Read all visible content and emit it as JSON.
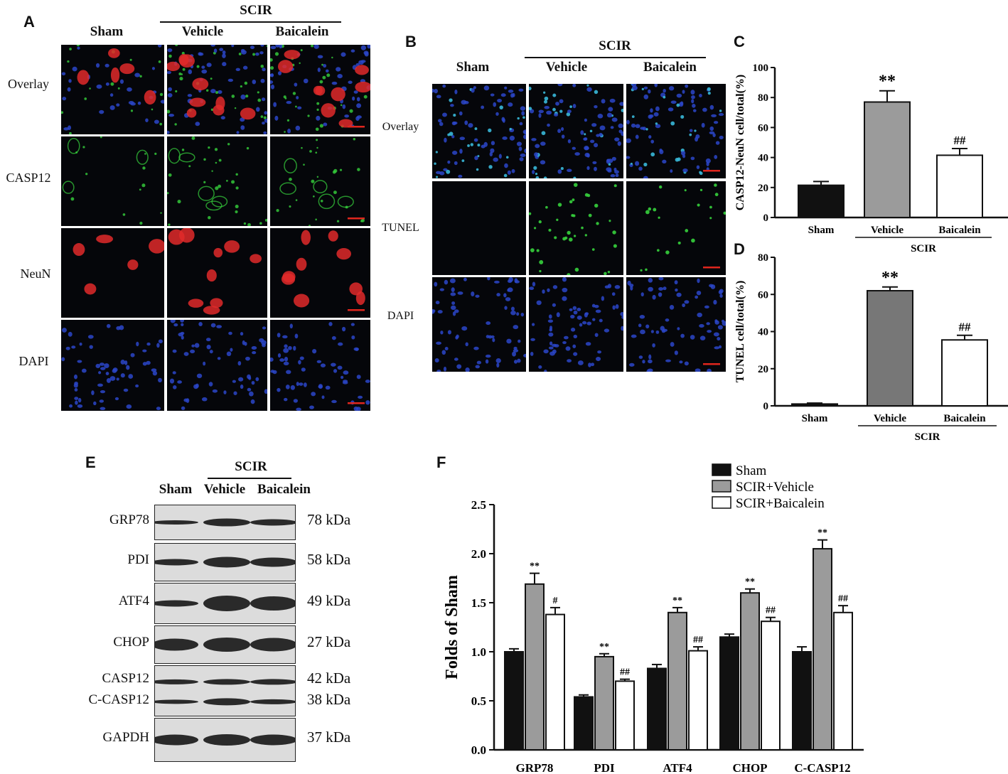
{
  "panel_a": {
    "letter": "A",
    "group_label": "SCIR",
    "columns": [
      "Sham",
      "Vehicle",
      "Baicalein"
    ],
    "rows": [
      "Overlay",
      "CASP12",
      "NeuN",
      "DAPI"
    ]
  },
  "panel_b": {
    "letter": "B",
    "group_label": "SCIR",
    "columns": [
      "Sham",
      "Vehicle",
      "Baicalein"
    ],
    "rows": [
      "Overlay",
      "TUNEL",
      "DAPI"
    ]
  },
  "panel_e": {
    "letter": "E",
    "group_label": "SCIR",
    "columns": [
      "Sham",
      "Vehicle",
      "Baicalein"
    ],
    "proteins": [
      {
        "label": "GRP78",
        "kda": "78 kDa"
      },
      {
        "label": "PDI",
        "kda": "58 kDa"
      },
      {
        "label": "ATF4",
        "kda": "49 kDa"
      },
      {
        "label": "CHOP",
        "kda": "27 kDa"
      },
      {
        "label": "CASP12",
        "kda": "42 kDa"
      },
      {
        "label": "C-CASP12",
        "kda": "38 kDa"
      },
      {
        "label": "GAPDH",
        "kda": "37 kDa"
      }
    ]
  },
  "colors": {
    "sham": "#111111",
    "vehicle": "#9b9b9b",
    "vehicle_dark": "#777777",
    "baicalein": "#ffffff",
    "scale_bar": "#e0261d"
  },
  "chart_data": [
    {
      "panel": "C",
      "type": "bar",
      "categories": [
        "Sham",
        "Vehicle",
        "Baicalein"
      ],
      "group_label": "SCIR",
      "values": [
        21.5,
        77,
        41.5
      ],
      "errors": [
        2.5,
        7.5,
        4.5
      ],
      "annotations": [
        "",
        "**",
        "##"
      ],
      "ylabel": "CASP12-NeuN cell/total(%)",
      "ylim": [
        0,
        100
      ],
      "yticks": [
        0,
        20,
        40,
        60,
        80,
        100
      ]
    },
    {
      "panel": "D",
      "type": "bar",
      "categories": [
        "Sham",
        "Vehicle",
        "Baicalein"
      ],
      "group_label": "SCIR",
      "values": [
        1,
        62,
        35.5
      ],
      "errors": [
        0.5,
        2,
        2.5
      ],
      "annotations": [
        "",
        "**",
        "##"
      ],
      "ylabel": "TUNEL cell/total(%)",
      "ylim": [
        0,
        80
      ],
      "yticks": [
        0,
        20,
        40,
        60,
        80
      ]
    },
    {
      "panel": "F",
      "type": "bar",
      "categories": [
        "GRP78",
        "PDI",
        "ATF4",
        "CHOP",
        "C-CASP12"
      ],
      "series": [
        {
          "name": "Sham",
          "values": [
            1.0,
            0.54,
            0.83,
            1.15,
            1.0
          ],
          "errors": [
            0.03,
            0.02,
            0.04,
            0.03,
            0.05
          ],
          "annotations": [
            "",
            "",
            "",
            "",
            ""
          ]
        },
        {
          "name": "SCIR+Vehicle",
          "values": [
            1.69,
            0.95,
            1.4,
            1.6,
            2.05
          ],
          "errors": [
            0.11,
            0.03,
            0.05,
            0.04,
            0.09
          ],
          "annotations": [
            "**",
            "**",
            "**",
            "**",
            "**"
          ]
        },
        {
          "name": "SCIR+Baicalein",
          "values": [
            1.38,
            0.7,
            1.01,
            1.31,
            1.4
          ],
          "errors": [
            0.07,
            0.02,
            0.04,
            0.04,
            0.07
          ],
          "annotations": [
            "#",
            "##",
            "##",
            "##",
            "##"
          ]
        }
      ],
      "ylabel": "Folds of Sham",
      "ylim": [
        0,
        2.5
      ],
      "yticks": [
        "0.0",
        "0.5",
        "1.0",
        "1.5",
        "2.0",
        "2.5"
      ],
      "legend": "top-right"
    }
  ]
}
